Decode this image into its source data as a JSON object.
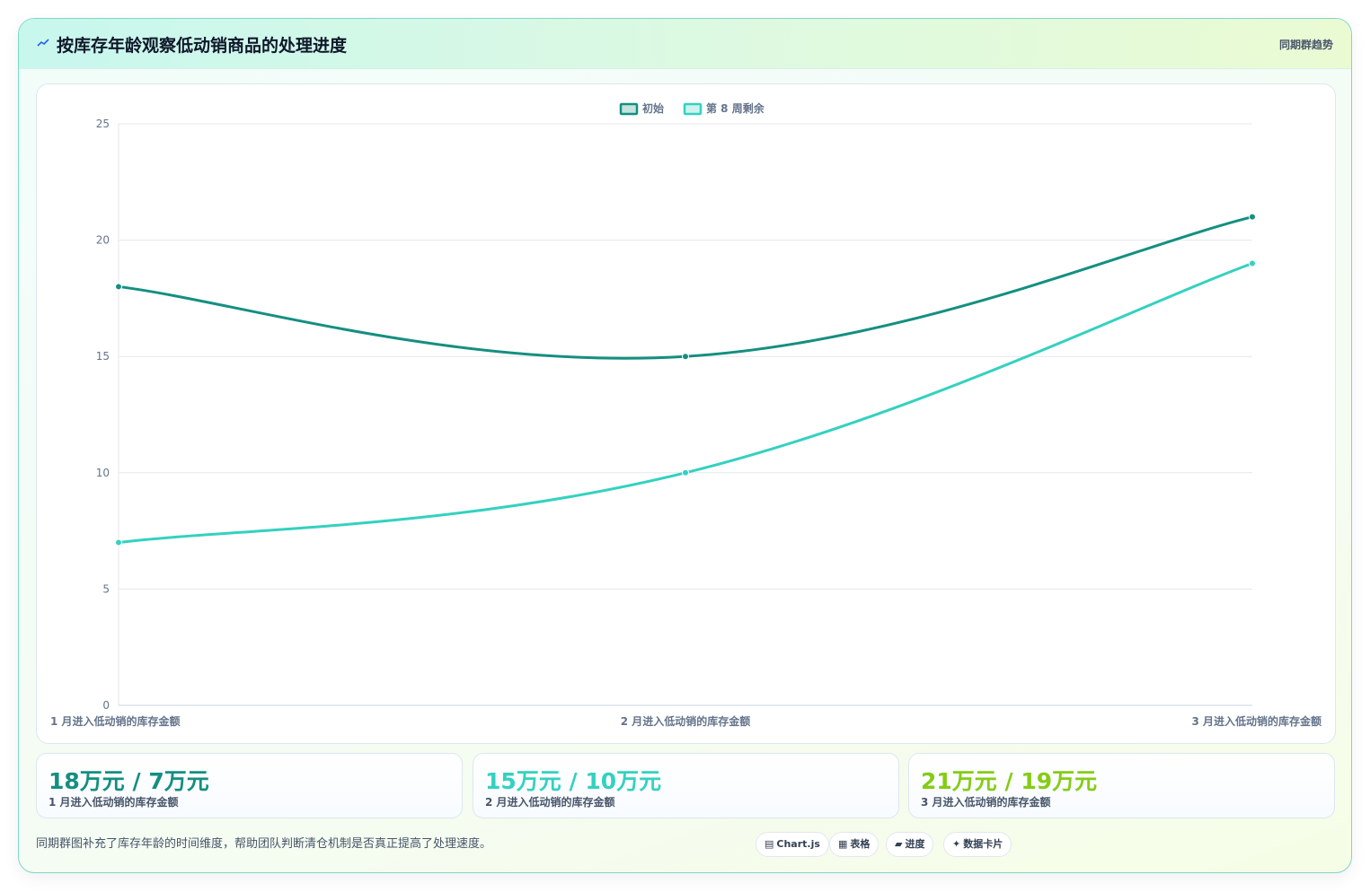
{
  "header": {
    "title": "按库存年龄观察低动销商品的处理进度",
    "tag": "同期群趋势"
  },
  "colors": {
    "initial": "#148f80",
    "remaining": "#34d1c0",
    "third_stat": "#84cc16"
  },
  "chart_data": {
    "type": "line",
    "categories": [
      "1 月进入低动销的库存金额",
      "2 月进入低动销的库存金额",
      "3 月进入低动销的库存金额"
    ],
    "series": [
      {
        "name": "初始",
        "values": [
          18,
          15,
          21
        ],
        "color": "#148f80"
      },
      {
        "name": "第 8 周剩余",
        "values": [
          7,
          10,
          19
        ],
        "color": "#34d1c0"
      }
    ],
    "ylim": [
      0,
      25
    ],
    "yticks": [
      "0",
      "5",
      "10",
      "15",
      "20",
      "25"
    ],
    "legend_position": "top-center",
    "grid": true
  },
  "stats": [
    {
      "value": "18万元 / 7万元",
      "label": "1 月进入低动销的库存金额",
      "color": "#148f80"
    },
    {
      "value": "15万元 / 10万元",
      "label": "2 月进入低动销的库存金额",
      "color": "#34d1c0"
    },
    {
      "value": "21万元 / 19万元",
      "label": "3 月进入低动销的库存金额",
      "color": "#84cc16"
    }
  ],
  "footer": {
    "note": "同期群图补充了库存年龄的时间维度，帮助团队判断清仓机制是否真正提高了处理速度。",
    "chips": [
      {
        "icon": "▤",
        "label": "Chart.js"
      },
      {
        "icon": "▦",
        "label": "表格"
      },
      {
        "icon": "▰",
        "label": "进度"
      },
      {
        "icon": "✦",
        "label": "数据卡片"
      }
    ]
  }
}
